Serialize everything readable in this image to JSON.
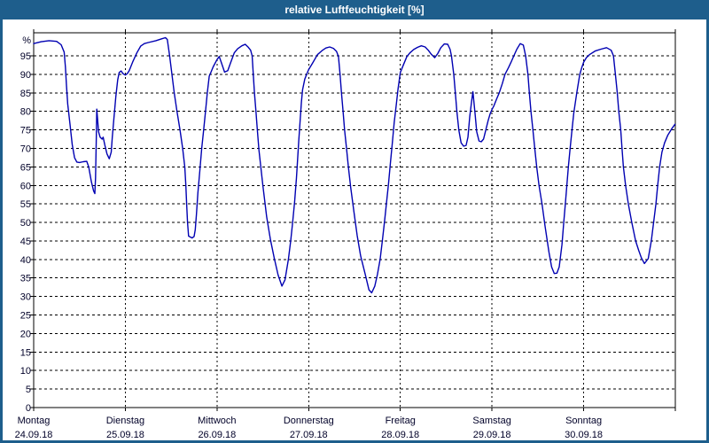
{
  "window": {
    "title": "relative Luftfeuchtigkeit [%]"
  },
  "colors": {
    "frame": "#1e5e8c",
    "plot_bg": "#ffffff",
    "grid": "#000000",
    "label": "#000028",
    "curve": "#0000b2"
  },
  "chart_data": {
    "type": "line",
    "title": "relative Luftfeuchtigkeit [%]",
    "ylabel": "%",
    "ylim": [
      0,
      101
    ],
    "yticks": [
      0,
      5,
      10,
      15,
      20,
      25,
      30,
      35,
      40,
      45,
      50,
      55,
      60,
      65,
      70,
      75,
      80,
      85,
      90,
      95
    ],
    "grid": "dashed",
    "legend": "none",
    "x_axis": {
      "unit": "days",
      "range": [
        0,
        7
      ],
      "days": [
        {
          "name": "Montag",
          "date": "24.09.18"
        },
        {
          "name": "Dienstag",
          "date": "25.09.18"
        },
        {
          "name": "Mittwoch",
          "date": "26.09.18"
        },
        {
          "name": "Donnerstag",
          "date": "27.09.18"
        },
        {
          "name": "Freitag",
          "date": "28.09.18"
        },
        {
          "name": "Samstag",
          "date": "29.09.18"
        },
        {
          "name": "Sonntag",
          "date": "30.09.18"
        }
      ]
    },
    "series": [
      {
        "name": "relative Luftfeuchtigkeit",
        "color": "#0000b2",
        "points": [
          [
            0.0,
            98.3
          ],
          [
            0.083,
            98.8
          ],
          [
            0.167,
            99.1
          ],
          [
            0.25,
            98.9
          ],
          [
            0.3,
            98.0
          ],
          [
            0.333,
            96.0
          ],
          [
            0.346,
            92.0
          ],
          [
            0.358,
            87.0
          ],
          [
            0.371,
            82.0
          ],
          [
            0.396,
            76.5
          ],
          [
            0.421,
            71.0
          ],
          [
            0.446,
            67.5
          ],
          [
            0.471,
            66.3
          ],
          [
            0.5,
            66.2
          ],
          [
            0.542,
            66.4
          ],
          [
            0.579,
            66.5
          ],
          [
            0.6,
            65.0
          ],
          [
            0.629,
            61.0
          ],
          [
            0.654,
            58.5
          ],
          [
            0.667,
            57.8
          ],
          [
            0.675,
            62.0
          ],
          [
            0.683,
            72.0
          ],
          [
            0.688,
            80.6
          ],
          [
            0.7,
            77.0
          ],
          [
            0.708,
            74.5
          ],
          [
            0.725,
            73.0
          ],
          [
            0.746,
            72.5
          ],
          [
            0.758,
            73.0
          ],
          [
            0.775,
            71.0
          ],
          [
            0.8,
            68.5
          ],
          [
            0.825,
            67.2
          ],
          [
            0.846,
            69.0
          ],
          [
            0.858,
            73.0
          ],
          [
            0.875,
            78.0
          ],
          [
            0.896,
            84.0
          ],
          [
            0.917,
            88.5
          ],
          [
            0.933,
            90.5
          ],
          [
            0.954,
            90.9
          ],
          [
            0.975,
            90.2
          ],
          [
            1.0,
            89.8
          ],
          [
            1.021,
            90.2
          ],
          [
            1.042,
            91.0
          ],
          [
            1.083,
            93.5
          ],
          [
            1.125,
            95.8
          ],
          [
            1.167,
            97.6
          ],
          [
            1.208,
            98.3
          ],
          [
            1.25,
            98.6
          ],
          [
            1.333,
            99.1
          ],
          [
            1.396,
            99.6
          ],
          [
            1.438,
            99.9
          ],
          [
            1.458,
            99.4
          ],
          [
            1.483,
            95.0
          ],
          [
            1.508,
            90.0
          ],
          [
            1.533,
            85.0
          ],
          [
            1.563,
            80.0
          ],
          [
            1.596,
            75.0
          ],
          [
            1.625,
            70.0
          ],
          [
            1.648,
            65.0
          ],
          [
            1.66,
            60.0
          ],
          [
            1.669,
            55.0
          ],
          [
            1.678,
            50.0
          ],
          [
            1.69,
            46.3
          ],
          [
            1.729,
            45.8
          ],
          [
            1.75,
            46.2
          ],
          [
            1.763,
            48.0
          ],
          [
            1.775,
            52.0
          ],
          [
            1.792,
            58.0
          ],
          [
            1.813,
            64.0
          ],
          [
            1.833,
            70.0
          ],
          [
            1.854,
            75.0
          ],
          [
            1.875,
            80.0
          ],
          [
            1.894,
            85.0
          ],
          [
            1.915,
            89.5
          ],
          [
            1.938,
            90.8
          ],
          [
            1.958,
            92.0
          ],
          [
            2.0,
            94.0
          ],
          [
            2.025,
            94.8
          ],
          [
            2.05,
            93.0
          ],
          [
            2.083,
            90.6
          ],
          [
            2.117,
            91.0
          ],
          [
            2.146,
            93.0
          ],
          [
            2.188,
            95.8
          ],
          [
            2.225,
            96.9
          ],
          [
            2.271,
            97.7
          ],
          [
            2.308,
            98.1
          ],
          [
            2.342,
            97.3
          ],
          [
            2.367,
            96.5
          ],
          [
            2.383,
            95.0
          ],
          [
            2.396,
            90.0
          ],
          [
            2.408,
            85.0
          ],
          [
            2.425,
            80.0
          ],
          [
            2.438,
            75.5
          ],
          [
            2.458,
            69.5
          ],
          [
            2.5,
            60.0
          ],
          [
            2.542,
            51.5
          ],
          [
            2.583,
            45.3
          ],
          [
            2.625,
            40.3
          ],
          [
            2.667,
            35.8
          ],
          [
            2.708,
            32.8
          ],
          [
            2.742,
            34.5
          ],
          [
            2.779,
            40.0
          ],
          [
            2.804,
            45.0
          ],
          [
            2.825,
            50.0
          ],
          [
            2.846,
            55.5
          ],
          [
            2.867,
            62.0
          ],
          [
            2.879,
            67.0
          ],
          [
            2.892,
            72.0
          ],
          [
            2.908,
            78.0
          ],
          [
            2.921,
            82.5
          ],
          [
            2.933,
            85.8
          ],
          [
            2.958,
            88.7
          ],
          [
            2.983,
            90.3
          ],
          [
            3.0,
            91.3
          ],
          [
            3.042,
            93.0
          ],
          [
            3.096,
            95.3
          ],
          [
            3.146,
            96.4
          ],
          [
            3.188,
            97.1
          ],
          [
            3.229,
            97.4
          ],
          [
            3.271,
            97.0
          ],
          [
            3.304,
            96.2
          ],
          [
            3.325,
            94.8
          ],
          [
            3.342,
            90.0
          ],
          [
            3.358,
            85.0
          ],
          [
            3.375,
            80.0
          ],
          [
            3.392,
            75.0
          ],
          [
            3.413,
            70.0
          ],
          [
            3.433,
            65.0
          ],
          [
            3.458,
            59.5
          ],
          [
            3.49,
            53.5
          ],
          [
            3.529,
            46.5
          ],
          [
            3.567,
            41.0
          ],
          [
            3.617,
            36.0
          ],
          [
            3.658,
            31.8
          ],
          [
            3.688,
            31.0
          ],
          [
            3.721,
            32.8
          ],
          [
            3.75,
            36.0
          ],
          [
            3.779,
            40.0
          ],
          [
            3.804,
            45.0
          ],
          [
            3.829,
            50.5
          ],
          [
            3.85,
            55.5
          ],
          [
            3.871,
            60.5
          ],
          [
            3.892,
            66.0
          ],
          [
            3.913,
            71.5
          ],
          [
            3.933,
            77.0
          ],
          [
            3.954,
            81.5
          ],
          [
            3.975,
            86.0
          ],
          [
            4.0,
            90.5
          ],
          [
            4.038,
            92.8
          ],
          [
            4.071,
            94.8
          ],
          [
            4.104,
            95.8
          ],
          [
            4.146,
            96.7
          ],
          [
            4.188,
            97.3
          ],
          [
            4.229,
            97.7
          ],
          [
            4.271,
            97.4
          ],
          [
            4.304,
            96.5
          ],
          [
            4.338,
            95.4
          ],
          [
            4.375,
            94.5
          ],
          [
            4.408,
            95.6
          ],
          [
            4.442,
            97.2
          ],
          [
            4.479,
            98.2
          ],
          [
            4.517,
            98.1
          ],
          [
            4.542,
            96.8
          ],
          [
            4.558,
            95.0
          ],
          [
            4.583,
            90.0
          ],
          [
            4.6,
            85.0
          ],
          [
            4.617,
            80.0
          ],
          [
            4.638,
            75.0
          ],
          [
            4.663,
            71.5
          ],
          [
            4.69,
            70.6
          ],
          [
            4.717,
            70.8
          ],
          [
            4.738,
            73.0
          ],
          [
            4.757,
            78.5
          ],
          [
            4.779,
            83.0
          ],
          [
            4.792,
            85.3
          ],
          [
            4.813,
            80.0
          ],
          [
            4.833,
            74.5
          ],
          [
            4.858,
            72.0
          ],
          [
            4.883,
            71.8
          ],
          [
            4.908,
            72.5
          ],
          [
            4.933,
            75.0
          ],
          [
            4.958,
            77.5
          ],
          [
            4.979,
            79.3
          ],
          [
            5.0,
            80.5
          ],
          [
            5.021,
            81.5
          ],
          [
            5.05,
            83.3
          ],
          [
            5.079,
            85.0
          ],
          [
            5.113,
            87.5
          ],
          [
            5.142,
            90.0
          ],
          [
            5.179,
            91.8
          ],
          [
            5.208,
            93.3
          ],
          [
            5.238,
            95.0
          ],
          [
            5.271,
            96.8
          ],
          [
            5.308,
            98.3
          ],
          [
            5.342,
            97.9
          ],
          [
            5.367,
            95.0
          ],
          [
            5.392,
            90.0
          ],
          [
            5.408,
            85.0
          ],
          [
            5.425,
            80.0
          ],
          [
            5.446,
            75.0
          ],
          [
            5.467,
            70.0
          ],
          [
            5.488,
            65.0
          ],
          [
            5.513,
            60.0
          ],
          [
            5.546,
            55.0
          ],
          [
            5.579,
            49.0
          ],
          [
            5.621,
            42.0
          ],
          [
            5.65,
            38.0
          ],
          [
            5.679,
            36.2
          ],
          [
            5.708,
            36.3
          ],
          [
            5.733,
            38.0
          ],
          [
            5.763,
            44.0
          ],
          [
            5.783,
            50.0
          ],
          [
            5.8,
            55.0
          ],
          [
            5.817,
            60.0
          ],
          [
            5.833,
            65.0
          ],
          [
            5.85,
            69.5
          ],
          [
            5.871,
            74.5
          ],
          [
            5.892,
            79.5
          ],
          [
            5.925,
            85.0
          ],
          [
            5.958,
            90.0
          ],
          [
            5.979,
            91.8
          ],
          [
            6.0,
            93.3
          ],
          [
            6.029,
            94.5
          ],
          [
            6.063,
            95.3
          ],
          [
            6.125,
            96.3
          ],
          [
            6.188,
            96.8
          ],
          [
            6.25,
            97.2
          ],
          [
            6.3,
            96.5
          ],
          [
            6.325,
            95.0
          ],
          [
            6.346,
            90.0
          ],
          [
            6.367,
            85.0
          ],
          [
            6.383,
            80.0
          ],
          [
            6.404,
            75.0
          ],
          [
            6.417,
            70.5
          ],
          [
            6.433,
            65.0
          ],
          [
            6.458,
            60.0
          ],
          [
            6.488,
            55.0
          ],
          [
            6.525,
            50.0
          ],
          [
            6.567,
            45.0
          ],
          [
            6.6,
            42.5
          ],
          [
            6.629,
            40.5
          ],
          [
            6.663,
            38.9
          ],
          [
            6.704,
            40.2
          ],
          [
            6.738,
            45.0
          ],
          [
            6.763,
            50.0
          ],
          [
            6.788,
            55.0
          ],
          [
            6.808,
            60.0
          ],
          [
            6.829,
            65.0
          ],
          [
            6.854,
            69.0
          ],
          [
            6.883,
            71.5
          ],
          [
            6.917,
            73.5
          ],
          [
            6.958,
            75.2
          ],
          [
            6.996,
            76.5
          ]
        ]
      }
    ]
  }
}
